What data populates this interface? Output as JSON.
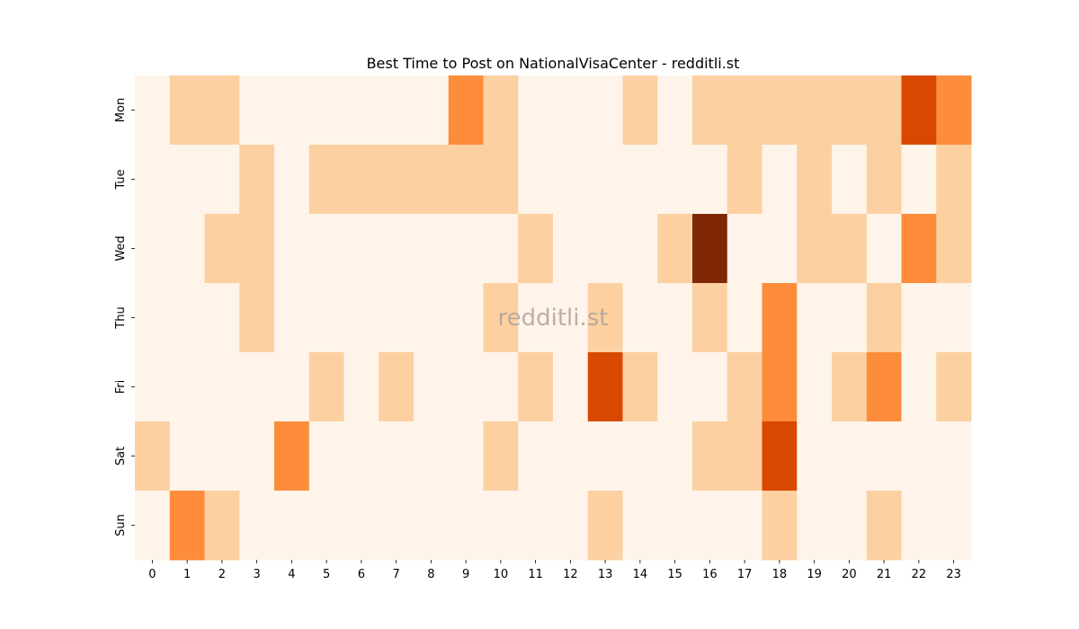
{
  "chart_data": {
    "type": "heatmap",
    "title": "Best Time to Post on NationalVisaCenter - redditli.st",
    "watermark": "redditli.st",
    "xlabel": "",
    "ylabel": "",
    "x_labels": [
      "0",
      "1",
      "2",
      "3",
      "4",
      "5",
      "6",
      "7",
      "8",
      "9",
      "10",
      "11",
      "12",
      "13",
      "14",
      "15",
      "16",
      "17",
      "18",
      "19",
      "20",
      "21",
      "22",
      "23"
    ],
    "y_labels": [
      "Mon",
      "Tue",
      "Wed",
      "Thu",
      "Fri",
      "Sat",
      "Sun"
    ],
    "colormap": "Oranges",
    "legend": "none",
    "grid": false,
    "values": [
      [
        0,
        1,
        1,
        0,
        0,
        0,
        0,
        0,
        0,
        3,
        1,
        0,
        0,
        0,
        1,
        0,
        1,
        1,
        1,
        1,
        1,
        1,
        4,
        3
      ],
      [
        0,
        0,
        0,
        1,
        0,
        1,
        1,
        1,
        1,
        1,
        1,
        0,
        0,
        0,
        0,
        0,
        0,
        1,
        0,
        1,
        0,
        1,
        0,
        1
      ],
      [
        0,
        0,
        1,
        1,
        0,
        0,
        0,
        0,
        0,
        0,
        0,
        1,
        0,
        0,
        0,
        1,
        5,
        0,
        0,
        1,
        1,
        0,
        3,
        1
      ],
      [
        0,
        0,
        0,
        1,
        0,
        0,
        0,
        0,
        0,
        0,
        1,
        0,
        0,
        1,
        0,
        0,
        1,
        0,
        3,
        0,
        0,
        1,
        0,
        0
      ],
      [
        0,
        0,
        0,
        0,
        0,
        1,
        0,
        1,
        0,
        0,
        0,
        1,
        0,
        4,
        1,
        0,
        0,
        1,
        3,
        0,
        1,
        3,
        0,
        1
      ],
      [
        1,
        0,
        0,
        0,
        3,
        0,
        0,
        0,
        0,
        0,
        1,
        0,
        0,
        0,
        0,
        0,
        1,
        1,
        4,
        0,
        0,
        0,
        0,
        0
      ],
      [
        0,
        3,
        1,
        0,
        0,
        0,
        0,
        0,
        0,
        0,
        0,
        0,
        0,
        1,
        0,
        0,
        0,
        0,
        1,
        0,
        0,
        1,
        0,
        0
      ]
    ],
    "level_colors": [
      "#fef4e9",
      "#fcd0a1",
      "#fd9a54",
      "#fd8c3b",
      "#d94801",
      "#7f2704"
    ]
  }
}
